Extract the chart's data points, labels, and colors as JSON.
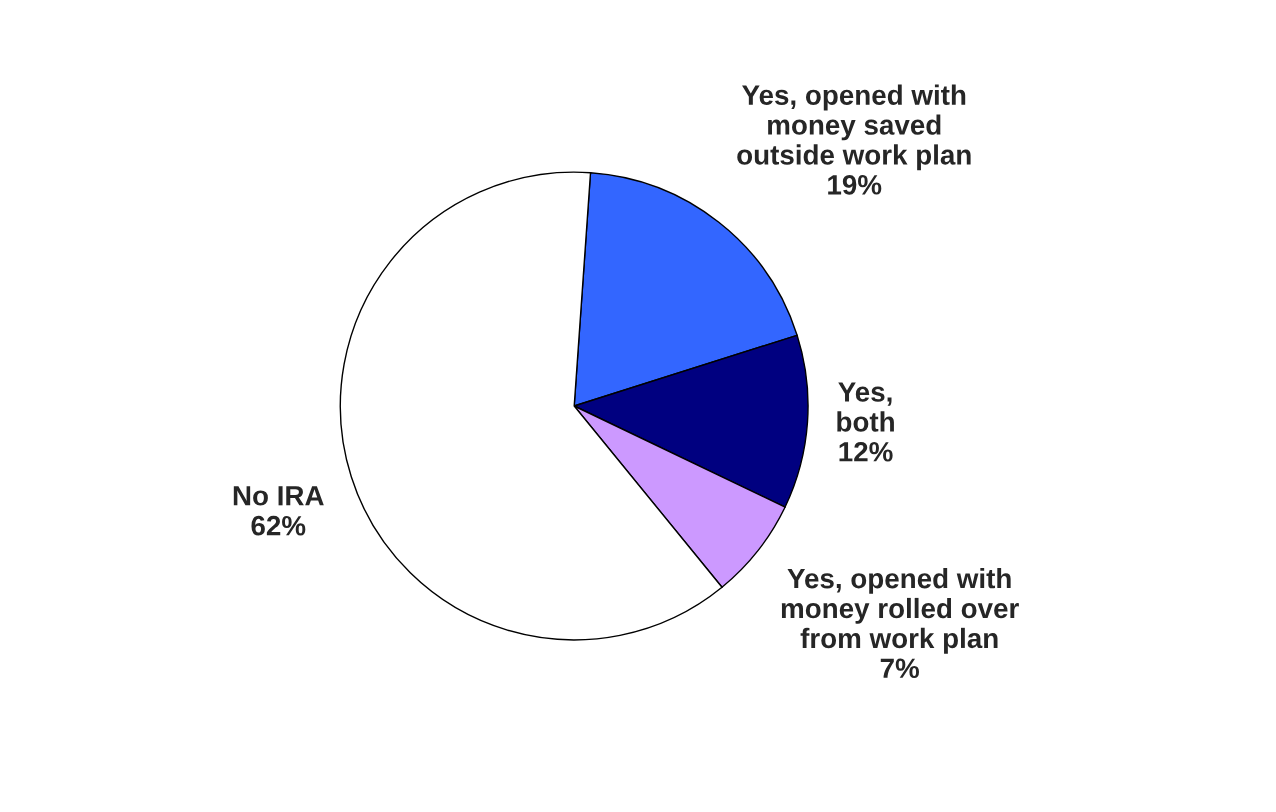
{
  "chart_data": {
    "type": "pie",
    "categories": [
      "Yes, opened with\nmoney saved\noutside work plan",
      "Yes,\nboth",
      "Yes, opened with\nmoney rolled over\nfrom work plan",
      "No IRA"
    ],
    "values": [
      19,
      12,
      7,
      62
    ],
    "value_labels": [
      "19%",
      "12%",
      "7%",
      "62%"
    ],
    "colors": [
      "#3366ff",
      "#000080",
      "#cc99ff",
      "#ffffff"
    ]
  }
}
